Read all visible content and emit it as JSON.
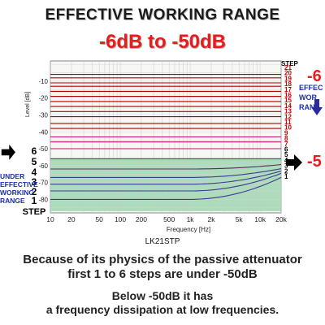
{
  "header": {
    "title": "EFFECTIVE WORKING RANGE",
    "subtitle": "-6dB to -50dB"
  },
  "model_label": "LK21STP",
  "left_annotation": {
    "lines": [
      "UNDER",
      "EFFECTIVE",
      "WORKING",
      "RANGE"
    ]
  },
  "right_annotation": {
    "top": "-6",
    "lines": [
      "EFFEC",
      "WOR",
      "RAN"
    ],
    "bottom": "-5"
  },
  "notes": {
    "main": [
      "Because of its physics of the passive attenuator",
      "first 1 to 6 steps are under -50dB"
    ],
    "sub": [
      "Below -50dB it has",
      "a frequency dissipation at low frequencies."
    ]
  },
  "colors": {
    "green_band": "#9fd7b0",
    "red_text": "#e81c1c",
    "blue_text": "#1a2db8",
    "step_label_red": "#c80000",
    "step_label_black": "#000000"
  },
  "chart_data": {
    "type": "line",
    "xlabel": "Frequency [Hz]",
    "ylabel": "Level [dB]",
    "x_scale": "log",
    "xlim": [
      10,
      20000
    ],
    "ylim": [
      -88,
      2
    ],
    "x_ticks": [
      {
        "v": 10,
        "label": "10"
      },
      {
        "v": 20,
        "label": "20"
      },
      {
        "v": 50,
        "label": "50"
      },
      {
        "v": 100,
        "label": "100"
      },
      {
        "v": 200,
        "label": "200"
      },
      {
        "v": 500,
        "label": "500"
      },
      {
        "v": 1000,
        "label": "1k"
      },
      {
        "v": 2000,
        "label": "2k"
      },
      {
        "v": 5000,
        "label": "5k"
      },
      {
        "v": 10000,
        "label": "10k"
      },
      {
        "v": 20000,
        "label": "20k"
      }
    ],
    "y_ticks": [
      -10,
      -20,
      -30,
      -40,
      -50,
      -60,
      -70,
      -80
    ],
    "grid": true,
    "highlight_band": {
      "y_from": -87,
      "y_to": -56
    },
    "step_header": "STEP",
    "step_label_bottom": "STEP",
    "series": [
      {
        "name": "21",
        "level": -6,
        "color": "#b30000"
      },
      {
        "name": "20",
        "level": -8,
        "color": "#b30000"
      },
      {
        "name": "19",
        "level": -11,
        "color": "#b30000"
      },
      {
        "name": "18",
        "level": -13,
        "color": "#b30000"
      },
      {
        "name": "17",
        "level": -16,
        "color": "#b30000"
      },
      {
        "name": "16",
        "level": -19,
        "color": "#b30000"
      },
      {
        "name": "15",
        "level": -22,
        "color": "#b30000"
      },
      {
        "name": "14",
        "level": -25,
        "color": "#b30000"
      },
      {
        "name": "13",
        "level": -28,
        "color": "#b30000"
      },
      {
        "name": "12",
        "level": -31,
        "color": "#b30000"
      },
      {
        "name": "11",
        "level": -35,
        "color": "#b30000"
      },
      {
        "name": "10",
        "level": -38,
        "color": "#b30000"
      },
      {
        "name": "9",
        "level": -43,
        "color": "#c8106a"
      },
      {
        "name": "8",
        "level": -46,
        "color": "#c8106a"
      },
      {
        "name": "7",
        "level": -50,
        "color": "#c8106a"
      },
      {
        "name": "6",
        "level": -56,
        "color": "#5a2a60"
      },
      {
        "name": "5",
        "level": -62,
        "color": "#5a2a60"
      },
      {
        "name": "4",
        "level": -67,
        "color": "#3b3b8c"
      },
      {
        "name": "3",
        "level": -71,
        "color": "#3b3b8c"
      },
      {
        "name": "2",
        "level": -75,
        "color": "#3b3b8c"
      },
      {
        "name": "1",
        "level": -80,
        "color": "#3b3b8c"
      }
    ],
    "left_step_labels": [
      "6",
      "5",
      "4",
      "3",
      "2",
      "1"
    ]
  }
}
